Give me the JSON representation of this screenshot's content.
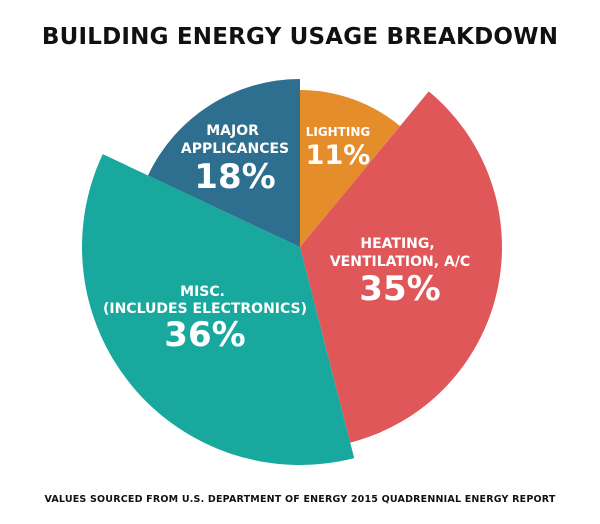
{
  "title": "BUILDING ENERGY USAGE BREAKDOWN",
  "footnote": "VALUES SOURCED FROM U.S. DEPARTMENT OF ENERGY 2015 QUADRENNIAL ENERGY REPORT",
  "chart_data": {
    "type": "pie",
    "title": "BUILDING ENERGY USAGE BREAKDOWN",
    "slices": [
      {
        "label": [
          "LIGHTING"
        ],
        "value": "11%",
        "percent": 11,
        "color": "#e68d2b"
      },
      {
        "label": [
          "HEATING,",
          "VENTILATION, A/C"
        ],
        "value": "35%",
        "percent": 35,
        "color": "#e0575a"
      },
      {
        "label": [
          "MISC.",
          "(INCLUDES ELECTRONICS)"
        ],
        "value": "36%",
        "percent": 36,
        "color": "#18a89d"
      },
      {
        "label": [
          "MAJOR",
          "APPLICANCES"
        ],
        "value": "18%",
        "percent": 18,
        "color": "#2e6e8e"
      }
    ]
  }
}
